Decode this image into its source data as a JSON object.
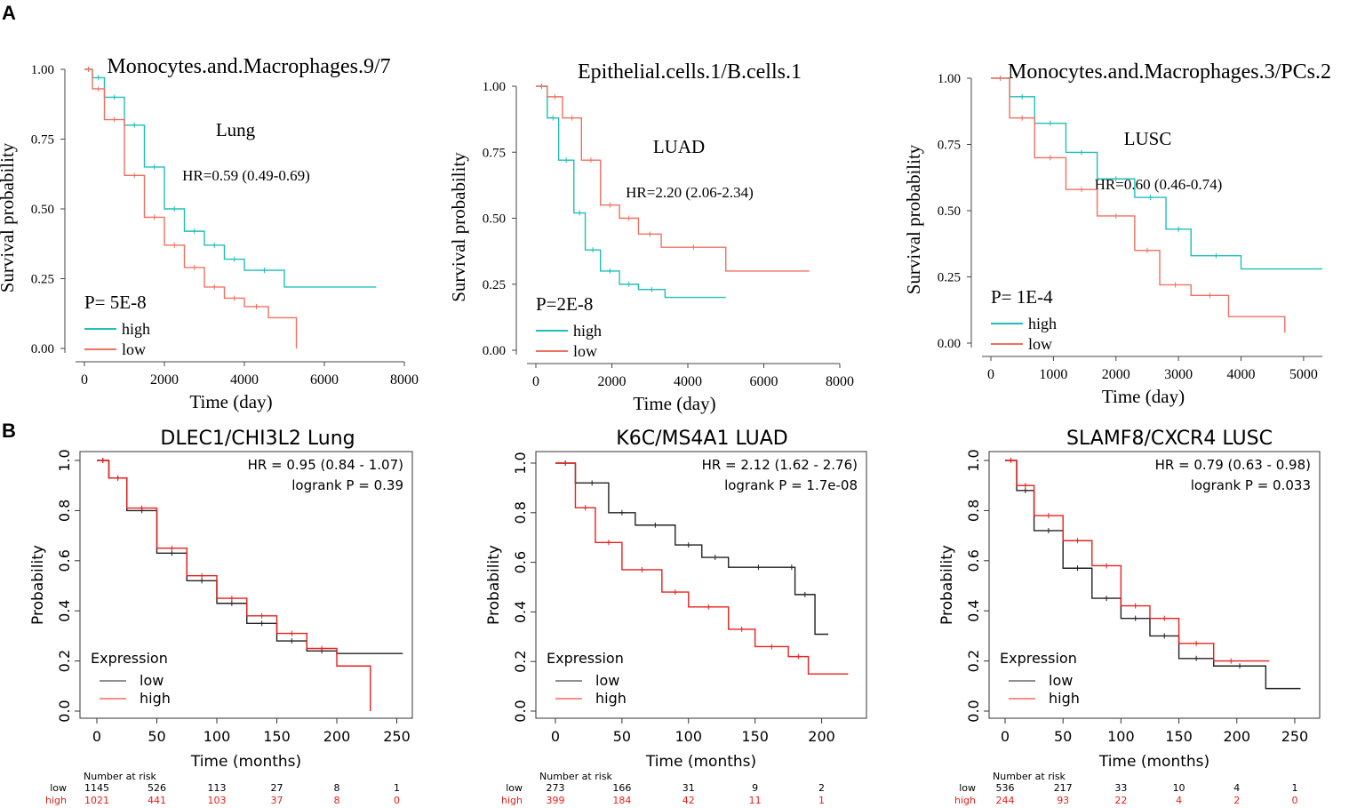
{
  "panel_labels": [
    "A",
    "B"
  ],
  "chart_data": [
    {
      "type": "line",
      "panel": "A",
      "title": "Monocytes.and.Macrophages.9/7",
      "subtitle": "Lung",
      "hr": "HR=0.59 (0.49-0.69)",
      "p": "P= 5E-8",
      "xlabel": "Time (day)",
      "ylabel": "Survival probability",
      "xticks": [
        0,
        2000,
        4000,
        6000,
        8000
      ],
      "yticks": [
        "0.00",
        "0.25",
        "0.50",
        "0.75",
        "1.00"
      ],
      "xlim": [
        0,
        8000
      ],
      "ylim": [
        0,
        1
      ],
      "series": [
        {
          "name": "high",
          "color": "#1fbfb8",
          "x": [
            0,
            200,
            500,
            1000,
            1500,
            2000,
            2500,
            3000,
            3500,
            4000,
            5000,
            7300
          ],
          "y": [
            1.0,
            0.97,
            0.9,
            0.8,
            0.65,
            0.5,
            0.42,
            0.37,
            0.32,
            0.28,
            0.22,
            0.22
          ]
        },
        {
          "name": "low",
          "color": "#f07060",
          "x": [
            0,
            200,
            500,
            1000,
            1500,
            2000,
            2500,
            3000,
            3500,
            4000,
            4600,
            5300
          ],
          "y": [
            1.0,
            0.93,
            0.82,
            0.62,
            0.47,
            0.37,
            0.29,
            0.22,
            0.18,
            0.15,
            0.11,
            0.0
          ]
        }
      ]
    },
    {
      "type": "line",
      "panel": "A",
      "title": "Epithelial.cells.1/B.cells.1",
      "subtitle": "LUAD",
      "hr": "HR=2.20 (2.06-2.34)",
      "p": "P=2E-8",
      "xlabel": "Time (day)",
      "ylabel": "Survival probability",
      "xticks": [
        0,
        2000,
        4000,
        6000,
        8000
      ],
      "yticks": [
        "0.00",
        "0.25",
        "0.50",
        "0.75",
        "1.00"
      ],
      "xlim": [
        0,
        8000
      ],
      "ylim": [
        0,
        1
      ],
      "series": [
        {
          "name": "high",
          "color": "#1fbfb8",
          "x": [
            0,
            300,
            600,
            1000,
            1300,
            1700,
            2200,
            2700,
            3400,
            5000
          ],
          "y": [
            1.0,
            0.88,
            0.72,
            0.52,
            0.38,
            0.3,
            0.25,
            0.23,
            0.2,
            0.2
          ]
        },
        {
          "name": "low",
          "color": "#f07060",
          "x": [
            0,
            300,
            700,
            1200,
            1700,
            2200,
            2700,
            3300,
            5000,
            7200
          ],
          "y": [
            1.0,
            0.96,
            0.88,
            0.72,
            0.55,
            0.5,
            0.44,
            0.39,
            0.3,
            0.3
          ]
        }
      ]
    },
    {
      "type": "line",
      "panel": "A",
      "title": "Monocytes.and.Macrophages.3/PCs.2",
      "subtitle": "LUSC",
      "hr": "HR=0.60 (0.46-0.74)",
      "p": "P= 1E-4",
      "xlabel": "Time (day)",
      "ylabel": "Survival probability",
      "xticks": [
        0,
        1000,
        2000,
        3000,
        4000,
        5000
      ],
      "yticks": [
        "0.00",
        "0.25",
        "0.50",
        "0.75",
        "1.00"
      ],
      "xlim": [
        0,
        5300
      ],
      "ylim": [
        0,
        1
      ],
      "series": [
        {
          "name": "high",
          "color": "#1fbfb8",
          "x": [
            0,
            300,
            700,
            1200,
            1700,
            2300,
            2800,
            3200,
            4000,
            5300
          ],
          "y": [
            1.0,
            0.93,
            0.83,
            0.72,
            0.62,
            0.55,
            0.43,
            0.33,
            0.28,
            0.28
          ]
        },
        {
          "name": "low",
          "color": "#f07060",
          "x": [
            0,
            300,
            700,
            1200,
            1700,
            2300,
            2700,
            3200,
            3800,
            4700
          ],
          "y": [
            1.0,
            0.85,
            0.7,
            0.58,
            0.48,
            0.35,
            0.22,
            0.18,
            0.1,
            0.04
          ]
        }
      ]
    },
    {
      "type": "line",
      "panel": "B",
      "title": "DLEC1/CHI3L2  Lung",
      "hr": "HR = 0.95 (0.84 - 1.07)",
      "logrank": "logrank P = 0.39",
      "xlabel": "Time (months)",
      "ylabel": "Probability",
      "xticks": [
        0,
        50,
        100,
        150,
        200,
        250
      ],
      "yticks": [
        "0.0",
        "0.2",
        "0.4",
        "0.6",
        "0.8",
        "1.0"
      ],
      "xlim": [
        0,
        260
      ],
      "ylim": [
        0,
        1
      ],
      "legend_title": "Expression",
      "series": [
        {
          "name": "low",
          "color": "#222222",
          "x": [
            0,
            10,
            25,
            50,
            75,
            100,
            125,
            150,
            175,
            200,
            255
          ],
          "y": [
            1.0,
            0.93,
            0.8,
            0.63,
            0.52,
            0.43,
            0.35,
            0.28,
            0.24,
            0.23,
            0.23
          ]
        },
        {
          "name": "high",
          "color": "#e8201a",
          "x": [
            0,
            10,
            25,
            50,
            75,
            100,
            125,
            150,
            175,
            200,
            228
          ],
          "y": [
            1.0,
            0.93,
            0.81,
            0.65,
            0.54,
            0.45,
            0.38,
            0.31,
            0.25,
            0.18,
            0.0
          ]
        }
      ],
      "risk": {
        "label": "Number at risk",
        "times": [
          0,
          50,
          100,
          150,
          200,
          250
        ],
        "low": [
          "1145",
          "526",
          "113",
          "27",
          "8",
          "1"
        ],
        "high": [
          "1021",
          "441",
          "103",
          "37",
          "8",
          "0"
        ]
      }
    },
    {
      "type": "line",
      "panel": "B",
      "title": "K6C/MS4A1  LUAD",
      "hr": "HR = 2.12 (1.62 - 2.76)",
      "logrank": "logrank P = 1.7e-08",
      "xlabel": "Time (months)",
      "ylabel": "Probability",
      "xticks": [
        0,
        50,
        100,
        150,
        200
      ],
      "yticks": [
        "0.0",
        "0.2",
        "0.4",
        "0.6",
        "0.8",
        "1.0"
      ],
      "xlim": [
        0,
        225
      ],
      "ylim": [
        0,
        1
      ],
      "legend_title": "Expression",
      "series": [
        {
          "name": "low",
          "color": "#222222",
          "x": [
            0,
            15,
            40,
            60,
            90,
            110,
            130,
            175,
            180,
            195,
            205
          ],
          "y": [
            1.0,
            0.92,
            0.8,
            0.75,
            0.67,
            0.62,
            0.58,
            0.58,
            0.47,
            0.31,
            0.31
          ]
        },
        {
          "name": "high",
          "color": "#e8201a",
          "x": [
            0,
            15,
            30,
            50,
            80,
            100,
            130,
            150,
            175,
            190,
            220
          ],
          "y": [
            1.0,
            0.82,
            0.68,
            0.57,
            0.48,
            0.42,
            0.33,
            0.26,
            0.22,
            0.15,
            0.15
          ]
        }
      ],
      "risk": {
        "label": "Number at risk",
        "times": [
          0,
          50,
          100,
          150,
          200
        ],
        "low": [
          "273",
          "166",
          "31",
          "9",
          "2"
        ],
        "high": [
          "399",
          "184",
          "42",
          "11",
          "1"
        ]
      }
    },
    {
      "type": "line",
      "panel": "B",
      "title": "SLAMF8/CXCR4  LUSC",
      "hr": "HR = 0.79 (0.63 - 0.98)",
      "logrank": "logrank P = 0.033",
      "xlabel": "Time (months)",
      "ylabel": "Probability",
      "xticks": [
        0,
        50,
        100,
        150,
        200,
        250
      ],
      "yticks": [
        "0.0",
        "0.2",
        "0.4",
        "0.6",
        "0.8",
        "1.0"
      ],
      "xlim": [
        0,
        260
      ],
      "ylim": [
        0,
        1
      ],
      "legend_title": "Expression",
      "series": [
        {
          "name": "low",
          "color": "#222222",
          "x": [
            0,
            10,
            25,
            50,
            75,
            100,
            125,
            150,
            180,
            225,
            255
          ],
          "y": [
            1.0,
            0.88,
            0.72,
            0.57,
            0.45,
            0.37,
            0.3,
            0.21,
            0.18,
            0.09,
            0.09
          ]
        },
        {
          "name": "high",
          "color": "#e8201a",
          "x": [
            0,
            10,
            25,
            50,
            75,
            100,
            125,
            150,
            180,
            210,
            228
          ],
          "y": [
            1.0,
            0.9,
            0.78,
            0.68,
            0.58,
            0.42,
            0.37,
            0.27,
            0.2,
            0.2,
            0.2
          ]
        }
      ],
      "risk": {
        "label": "Number at risk",
        "times": [
          0,
          50,
          100,
          150,
          200,
          250
        ],
        "low": [
          "536",
          "217",
          "33",
          "10",
          "4",
          "1"
        ],
        "high": [
          "244",
          "93",
          "22",
          "4",
          "2",
          "0"
        ]
      }
    }
  ]
}
